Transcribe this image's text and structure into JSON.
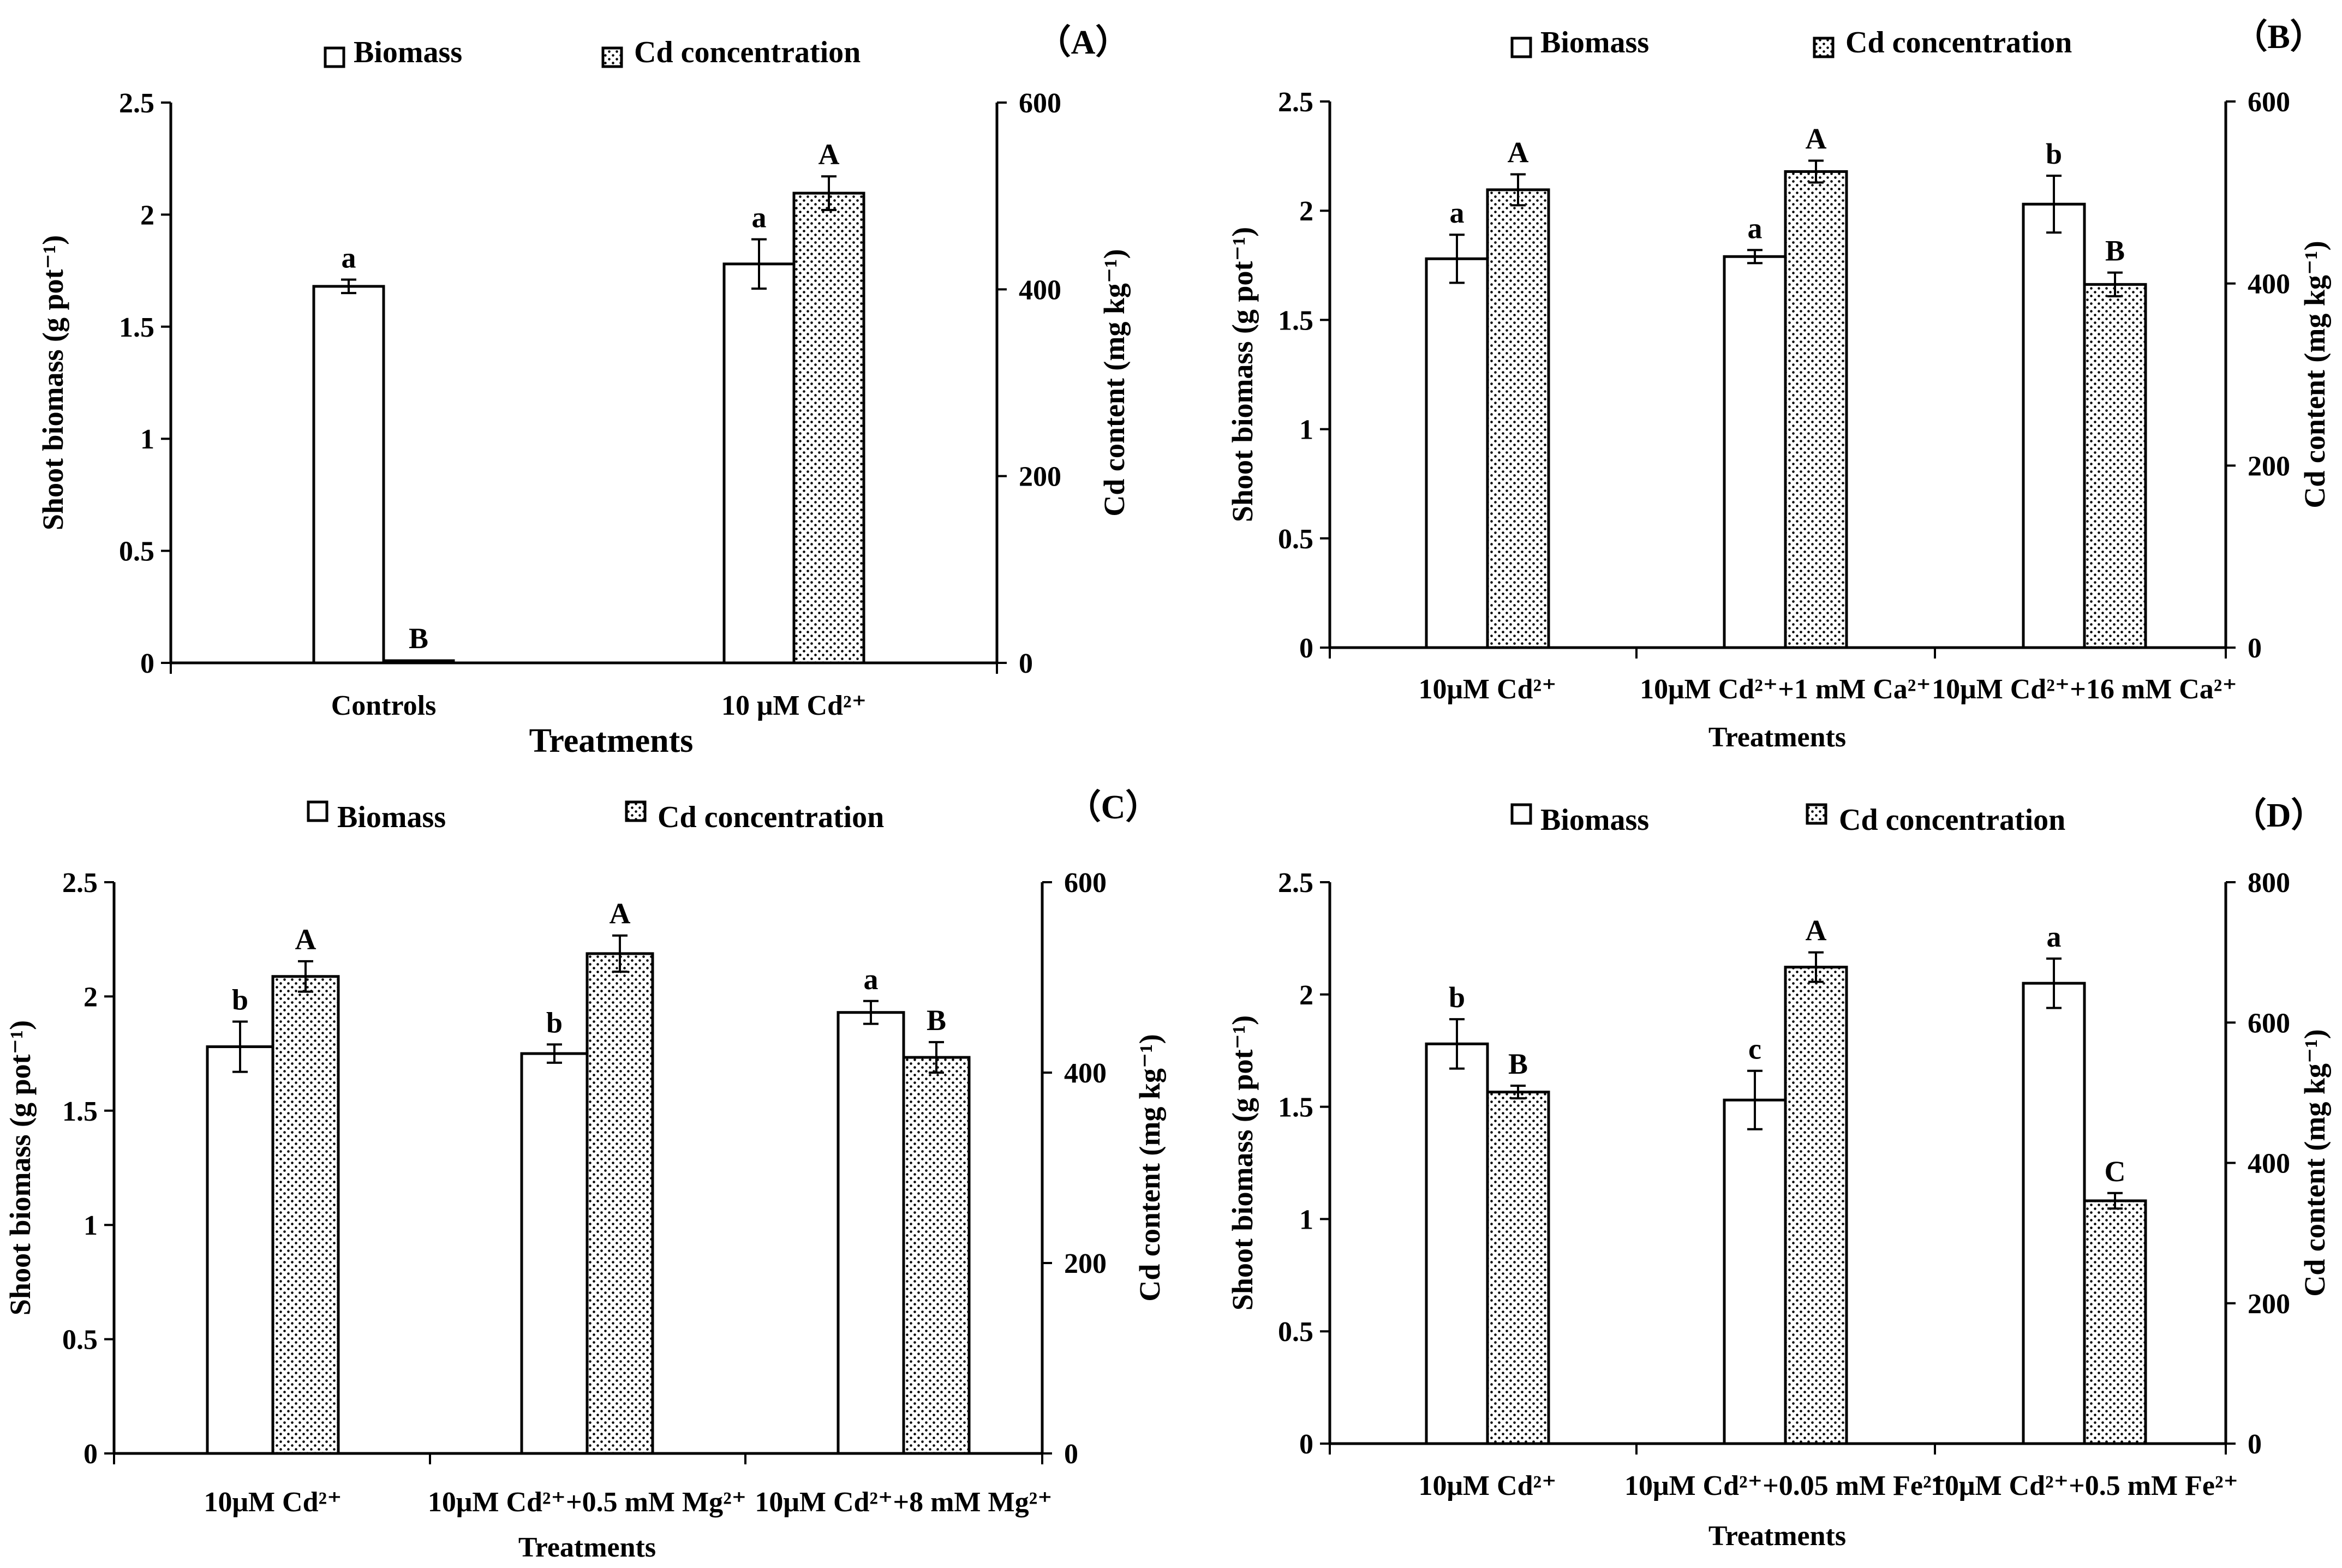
{
  "chart_data": [
    {
      "type": "bar",
      "panel_label": "（A）",
      "legend": [
        "Biomass",
        "Cd concentration"
      ],
      "legend_placement": "top",
      "xlabel": "Treatments",
      "ylabel": "Shoot biomass (g pot⁻¹)",
      "y2label": "Cd content (mg kg⁻¹)",
      "ylim": [
        0,
        2.5
      ],
      "y2lim": [
        0,
        600
      ],
      "yticks": [
        "0",
        "0.5",
        "1",
        "1.5",
        "2",
        "2.5"
      ],
      "y2ticks": [
        "0",
        "200",
        "400",
        "600"
      ],
      "categories": [
        "Controls",
        "10 μM Cd²⁺"
      ],
      "series": [
        {
          "name": "Biomass",
          "axis": "left",
          "values": [
            1.68,
            1.78
          ],
          "errors": [
            0.03,
            0.11
          ],
          "letters": [
            "a",
            "a"
          ]
        },
        {
          "name": "Cd concentration",
          "axis": "right",
          "values": [
            2,
            503
          ],
          "errors": [
            1,
            18
          ],
          "letters": [
            "B",
            "A"
          ]
        }
      ]
    },
    {
      "type": "bar",
      "panel_label": "（B）",
      "legend": [
        "Biomass",
        "Cd concentration"
      ],
      "legend_placement": "top",
      "xlabel": "Treatments",
      "ylabel": "Shoot biomass (g pot⁻¹)",
      "y2label": "Cd content (mg kg⁻¹)",
      "ylim": [
        0,
        2.5
      ],
      "y2lim": [
        0,
        600
      ],
      "yticks": [
        "0",
        "0.5",
        "1",
        "1.5",
        "2",
        "2.5"
      ],
      "y2ticks": [
        "0",
        "200",
        "400",
        "600"
      ],
      "categories": [
        "10μM Cd²⁺",
        "10μM Cd²⁺+1 mM Ca²⁺",
        "10μM Cd²⁺+16 mM Ca²⁺"
      ],
      "series": [
        {
          "name": "Biomass",
          "axis": "left",
          "values": [
            1.78,
            1.79,
            2.03
          ],
          "errors": [
            0.11,
            0.03,
            0.13
          ],
          "letters": [
            "a",
            "a",
            "b"
          ]
        },
        {
          "name": "Cd concentration",
          "axis": "right",
          "values": [
            503,
            523,
            399
          ],
          "errors": [
            17,
            12,
            13
          ],
          "letters": [
            "A",
            "A",
            "B"
          ]
        }
      ]
    },
    {
      "type": "bar",
      "panel_label": "（C）",
      "legend": [
        "Biomass",
        "Cd concentration"
      ],
      "legend_placement": "top",
      "xlabel": "Treatments",
      "ylabel": "Shoot biomass (g pot⁻¹)",
      "y2label": "Cd content (mg kg⁻¹)",
      "ylim": [
        0,
        2.5
      ],
      "y2lim": [
        0,
        600
      ],
      "yticks": [
        "0",
        "0.5",
        "1",
        "1.5",
        "2",
        "2.5"
      ],
      "y2ticks": [
        "0",
        "200",
        "400",
        "600"
      ],
      "categories": [
        "10μM Cd²⁺",
        "10μM Cd²⁺+0.5 mM Mg²⁺",
        "10μM Cd²⁺+8 mM Mg²⁺"
      ],
      "series": [
        {
          "name": "Biomass",
          "axis": "left",
          "values": [
            1.78,
            1.75,
            1.93
          ],
          "errors": [
            0.11,
            0.04,
            0.05
          ],
          "letters": [
            "b",
            "b",
            "a"
          ]
        },
        {
          "name": "Cd concentration",
          "axis": "right",
          "values": [
            501,
            525,
            416
          ],
          "errors": [
            16,
            19,
            16
          ],
          "letters": [
            "A",
            "A",
            "B"
          ]
        }
      ]
    },
    {
      "type": "bar",
      "panel_label": "（D）",
      "legend": [
        "Biomass",
        "Cd concentration"
      ],
      "legend_placement": "top",
      "xlabel": "Treatments",
      "ylabel": "Shoot biomass (g pot⁻¹)",
      "y2label": "Cd content  (mg kg⁻¹)",
      "ylim": [
        0,
        2.5
      ],
      "y2lim": [
        0,
        800
      ],
      "yticks": [
        "0",
        "0.5",
        "1",
        "1.5",
        "2",
        "2.5"
      ],
      "y2ticks": [
        "0",
        "200",
        "400",
        "600",
        "800"
      ],
      "categories": [
        "10μM Cd²⁺",
        "10μM Cd²⁺+0.05 mM Fe²⁺",
        "10μM Cd²⁺+0.5 mM Fe²⁺"
      ],
      "series": [
        {
          "name": "Biomass",
          "axis": "left",
          "values": [
            1.78,
            1.53,
            2.05
          ],
          "errors": [
            0.11,
            0.13,
            0.11
          ],
          "letters": [
            "b",
            "c",
            "a"
          ]
        },
        {
          "name": "Cd concentration",
          "axis": "right",
          "values": [
            501,
            679,
            346
          ],
          "errors": [
            9,
            21,
            11
          ],
          "letters": [
            "B",
            "A",
            "C"
          ]
        }
      ]
    }
  ]
}
